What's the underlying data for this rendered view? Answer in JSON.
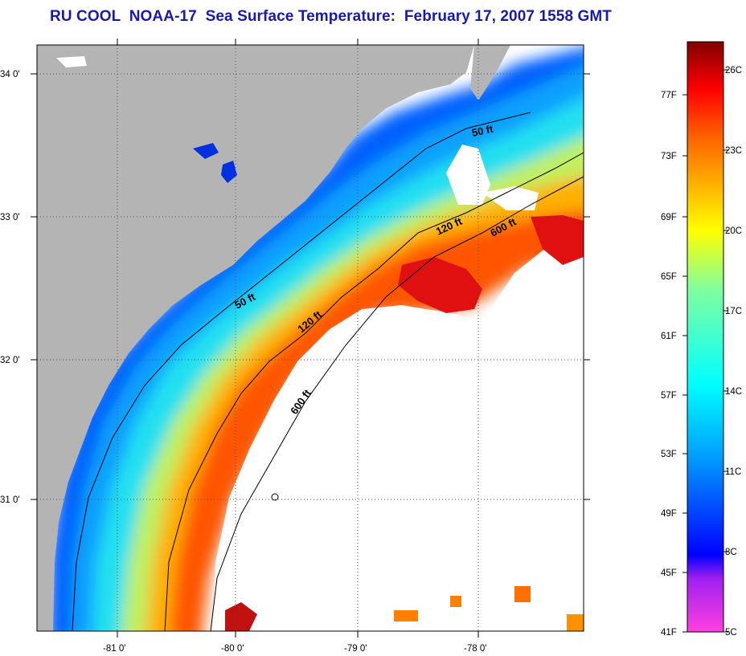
{
  "title": "RU COOL  NOAA-17  Sea Surface Temperature:  February 17, 2007 1558 GMT",
  "axes": {
    "lon_ticks": [
      {
        "value": -81,
        "label": "-81 0'"
      },
      {
        "value": -80,
        "label": "-80 0'"
      },
      {
        "value": -79,
        "label": "-79 0'"
      },
      {
        "value": -78,
        "label": "-78 0'"
      }
    ],
    "lat_ticks": [
      {
        "value": 34,
        "label": "34 0'"
      },
      {
        "value": 33,
        "label": "33 0'"
      },
      {
        "value": 32,
        "label": "32 0'"
      },
      {
        "value": 31,
        "label": "31 0'"
      }
    ]
  },
  "isobaths": [
    {
      "label": "50 ft"
    },
    {
      "label": "50 ft"
    },
    {
      "label": "120 ft"
    },
    {
      "label": "120 ft"
    },
    {
      "label": "600 ft"
    },
    {
      "label": "600 ft"
    }
  ],
  "colorbar": {
    "fahrenheit_labels": [
      "77F",
      "73F",
      "69F",
      "65F",
      "61F",
      "57F",
      "53F",
      "49F",
      "45F",
      "41F"
    ],
    "celsius_labels": [
      "26C",
      "23C",
      "20C",
      "17C",
      "14C",
      "11C",
      "8C",
      "5C"
    ],
    "colors": [
      "#ff40e0",
      "#a020f0",
      "#0000ff",
      "#00a0ff",
      "#00ffff",
      "#80ffa0",
      "#ffff00",
      "#ff8000",
      "#ff0000",
      "#800000"
    ]
  },
  "colors": {
    "land": "#b4b4b4",
    "cloud": "#ffffff",
    "title": "#1a1aa8"
  }
}
